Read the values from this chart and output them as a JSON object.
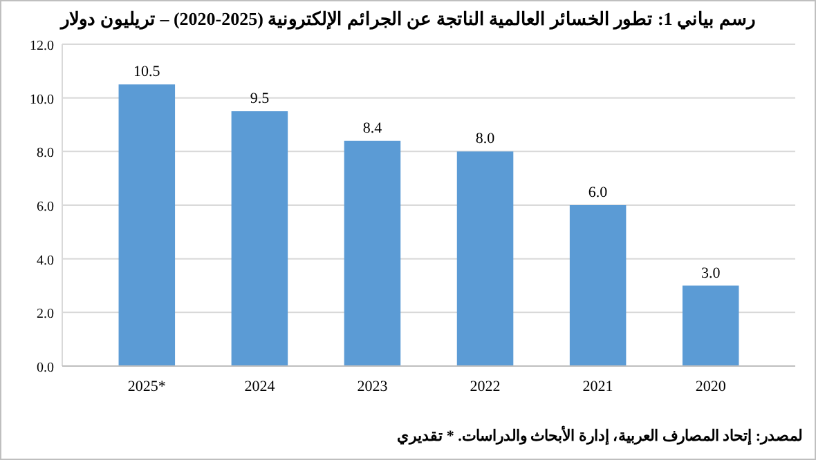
{
  "chart_data": {
    "type": "bar",
    "title": "رسم بياني 1: تطور الخسائر العالمية الناتجة عن الجرائم الإلكترونية (2025-2020) – تريليون دولار",
    "categories": [
      "2025*",
      "2024",
      "2023",
      "2022",
      "2021",
      "2020"
    ],
    "values": [
      10.5,
      9.5,
      8.4,
      8.0,
      6.0,
      3.0
    ],
    "value_labels": [
      "10.5",
      "9.5",
      "8.4",
      "8.0",
      "6.0",
      "3.0"
    ],
    "color": "#5b9bd5",
    "ylim": [
      0,
      12
    ],
    "yticks": [
      {
        "value": 0,
        "label": "0.0"
      },
      {
        "value": 2,
        "label": "2.0"
      },
      {
        "value": 4,
        "label": "4.0"
      },
      {
        "value": 6,
        "label": "6.0"
      },
      {
        "value": 8,
        "label": "8.0"
      },
      {
        "value": 10,
        "label": "10.0"
      },
      {
        "value": 12,
        "label": "12.0"
      }
    ],
    "grid": "y",
    "annotations": [
      "لمصدر: إتحاد المصارف العربية، إدارة الأبحاث والدراسات. * تقديري"
    ]
  }
}
